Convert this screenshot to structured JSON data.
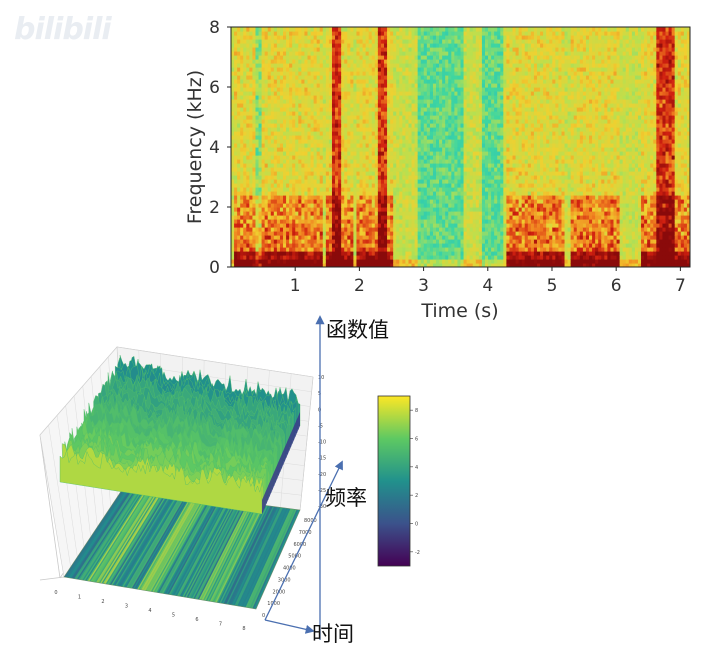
{
  "watermark": "bilibili",
  "spectrogram": {
    "type": "heatmap",
    "xlabel": "Time (s)",
    "ylabel": "Frequency (kHz)",
    "xticks": [
      "1",
      "2",
      "3",
      "4",
      "5",
      "6",
      "7"
    ],
    "yticks": [
      "0",
      "2",
      "4",
      "6",
      "8"
    ],
    "xlim": [
      0,
      7.15
    ],
    "ylim": [
      0,
      8
    ],
    "colormap": [
      "#1fb8c8",
      "#3fd6a0",
      "#b8e050",
      "#f0d030",
      "#f08020",
      "#d02010",
      "#8a0a0a"
    ]
  },
  "surface3d": {
    "z_axis_label": "函数值",
    "y_axis_label": "频率",
    "x_axis_label": "时间",
    "z_ticks": [
      "10",
      "5",
      "0",
      "-5",
      "-10",
      "-15",
      "-20",
      "-25",
      "-30"
    ],
    "y_ticks": [
      "8000",
      "7000",
      "6000",
      "5000",
      "4000",
      "3000",
      "2000",
      "1000",
      "0"
    ],
    "x_ticks": [
      "0",
      "1",
      "2",
      "3",
      "4",
      "5",
      "6",
      "7",
      "8"
    ],
    "colorbar_ticks": [
      "8",
      "6",
      "4",
      "2",
      "0",
      "-2"
    ],
    "colormap": [
      "#440154",
      "#3b528b",
      "#21918c",
      "#5ec962",
      "#fde725"
    ]
  },
  "chart_data": [
    {
      "type": "heatmap",
      "title": "",
      "xlabel": "Time (s)",
      "ylabel": "Frequency (kHz)",
      "x_range": [
        0,
        7.15
      ],
      "y_range": [
        0,
        8
      ],
      "grid": false
    },
    {
      "type": "area",
      "title": "",
      "xlabel": "时间",
      "ylabel": "频率",
      "zlabel": "函数值",
      "x_range": [
        0,
        8
      ],
      "y_range": [
        0,
        8000
      ],
      "z_range": [
        -30,
        10
      ],
      "colorbar_range": [
        -3,
        9
      ]
    }
  ]
}
